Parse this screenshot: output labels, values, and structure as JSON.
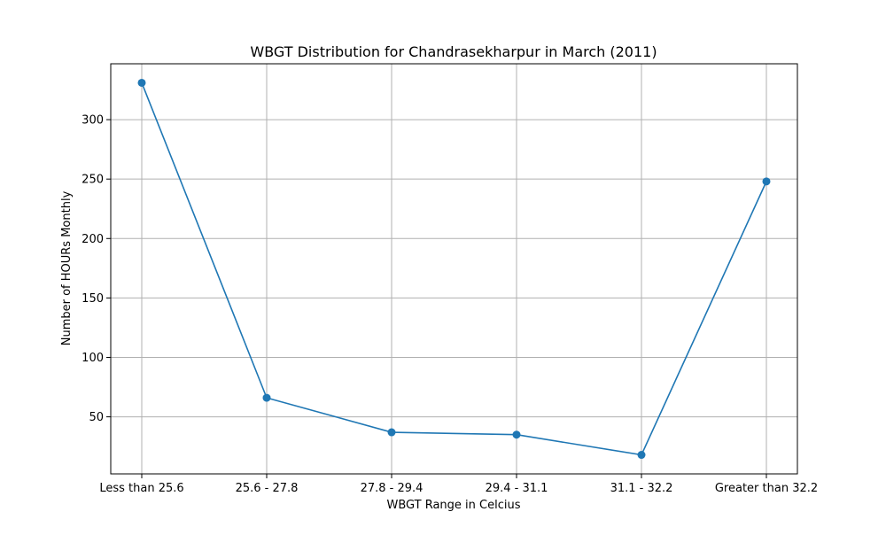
{
  "chart_data": {
    "type": "line",
    "title": "WBGT Distribution for Chandrasekharpur in March (2011)",
    "xlabel": "WBGT Range in Celcius",
    "ylabel": "Number of HOURs Monthly",
    "categories": [
      "Less than 25.6",
      "25.6 - 27.8",
      "27.8 - 29.4",
      "29.4 - 31.1",
      "31.1 - 32.2",
      "Greater than 32.2"
    ],
    "series": [
      {
        "values": [
          331,
          66,
          37,
          35,
          18,
          248
        ]
      }
    ],
    "yticks": [
      50,
      100,
      150,
      200,
      250,
      300
    ],
    "ylim": [
      2,
      347
    ],
    "grid": true,
    "line_color": "#1f77b4",
    "marker": "circle"
  }
}
